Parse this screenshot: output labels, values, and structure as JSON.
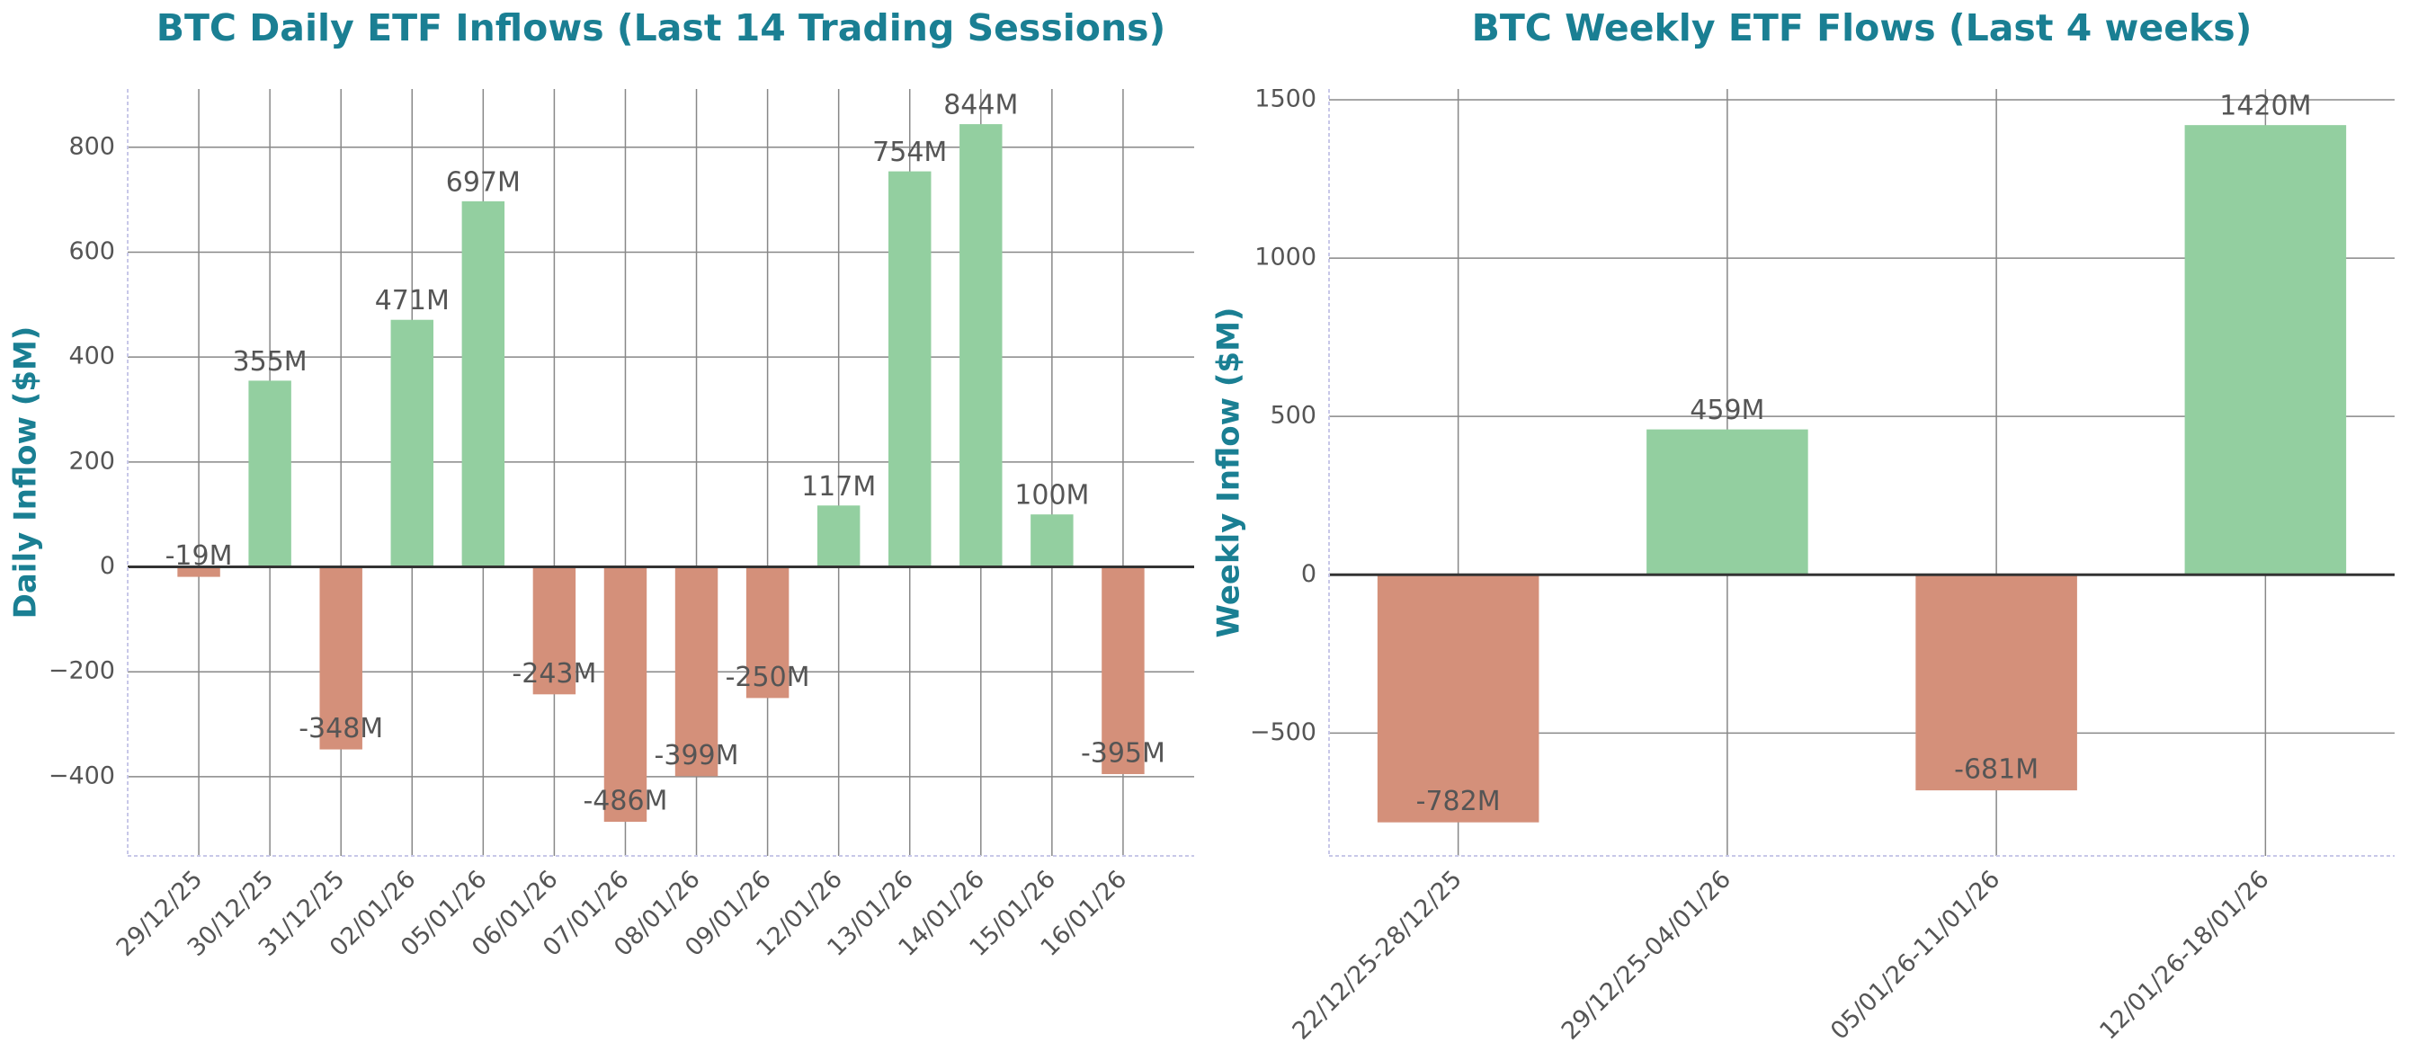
{
  "chart_data": [
    {
      "type": "bar",
      "title": "BTC Daily ETF Inflows (Last 14 Trading Sessions)",
      "y_label": "Daily Inflow ($M)",
      "categories": [
        "29/12/25",
        "30/12/25",
        "31/12/25",
        "02/01/26",
        "05/01/26",
        "06/01/26",
        "07/01/26",
        "08/01/26",
        "09/01/26",
        "12/01/26",
        "13/01/26",
        "14/01/26",
        "15/01/26",
        "16/01/26"
      ],
      "values": [
        -19,
        355,
        -348,
        471,
        697,
        -243,
        -486,
        -399,
        -250,
        117,
        754,
        844,
        100,
        -395
      ],
      "value_labels": [
        "-19M",
        "355M",
        "-348M",
        "471M",
        "697M",
        "-243M",
        "-486M",
        "-399M",
        "-250M",
        "117M",
        "754M",
        "844M",
        "100M",
        "-395M"
      ],
      "positive_color": "#93cfa0",
      "negative_color": "#d4907a",
      "ylim": [
        -551,
        911
      ],
      "yticks": [
        {
          "value": -400,
          "label": "−400"
        },
        {
          "value": -200,
          "label": "−200"
        },
        0,
        200,
        400,
        600,
        800
      ],
      "grid": true
    },
    {
      "type": "bar",
      "title": "BTC Weekly ETF Flows (Last 4 weeks)",
      "y_label": "Weekly Inflow ($M)",
      "categories": [
        "22/12/25-28/12/25",
        "29/12/25-04/01/26",
        "05/01/26-11/01/26",
        "12/01/26-18/01/26"
      ],
      "values": [
        -782,
        459,
        -681,
        1420
      ],
      "value_labels": [
        "-782M",
        "459M",
        "-681M",
        "1420M"
      ],
      "positive_color": "#93cfa0",
      "negative_color": "#d4907a",
      "ylim": [
        -888,
        1534
      ],
      "yticks": [
        {
          "value": -500,
          "label": "−500"
        },
        0,
        500,
        1000,
        1500
      ],
      "grid": true
    }
  ]
}
